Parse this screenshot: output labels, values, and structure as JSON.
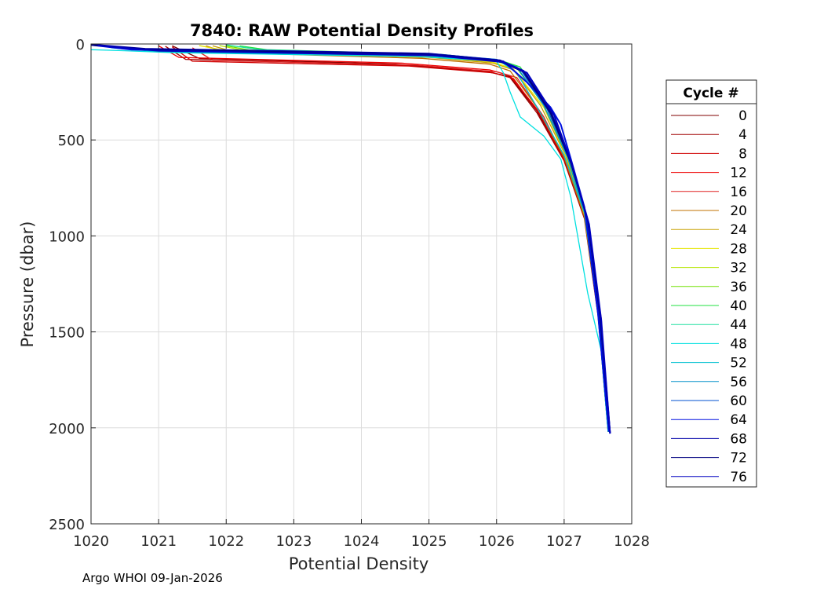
{
  "chart_data": {
    "type": "line",
    "title": "7840: RAW Potential Density Profiles",
    "xlabel": "Potential Density",
    "ylabel": "Pressure (dbar)",
    "xlim": [
      1020,
      1028
    ],
    "ylim": [
      0,
      2500
    ],
    "y_reversed": true,
    "x_ticks": [
      "1020",
      "1021",
      "1022",
      "1023",
      "1024",
      "1025",
      "1026",
      "1027",
      "1028"
    ],
    "y_ticks": [
      "0",
      "500",
      "1000",
      "1500",
      "2000",
      "2500"
    ],
    "grid": true,
    "legend_placement": "right",
    "legend_title": "Cycle #",
    "footer": "Argo WHOI 09-Jan-2026",
    "series": [
      {
        "name": "0",
        "color": "#800000",
        "points": [
          [
            1021.2,
            10
          ],
          [
            1021.6,
            75
          ],
          [
            1024.5,
            105
          ],
          [
            1025.8,
            140
          ],
          [
            1026.2,
            170
          ],
          [
            1026.6,
            350
          ],
          [
            1027.0,
            600
          ],
          [
            1027.3,
            900
          ],
          [
            1027.5,
            1400
          ],
          [
            1027.65,
            2020
          ]
        ]
      },
      {
        "name": "4",
        "color": "#a00000",
        "points": [
          [
            1021.1,
            12
          ],
          [
            1021.4,
            80
          ],
          [
            1024.6,
            110
          ],
          [
            1025.9,
            145
          ],
          [
            1026.2,
            175
          ],
          [
            1026.6,
            360
          ],
          [
            1027.0,
            610
          ],
          [
            1027.3,
            910
          ],
          [
            1027.5,
            1410
          ],
          [
            1027.66,
            2020
          ]
        ]
      },
      {
        "name": "8",
        "color": "#d00000",
        "points": [
          [
            1021.2,
            15
          ],
          [
            1021.5,
            90
          ],
          [
            1024.7,
            115
          ],
          [
            1025.95,
            150
          ],
          [
            1026.25,
            180
          ],
          [
            1026.65,
            370
          ],
          [
            1027.02,
            620
          ],
          [
            1027.32,
            920
          ],
          [
            1027.52,
            1420
          ],
          [
            1027.67,
            2020
          ]
        ]
      },
      {
        "name": "12",
        "color": "#ee0000",
        "points": [
          [
            1021.0,
            10
          ],
          [
            1021.3,
            70
          ],
          [
            1024.6,
            100
          ],
          [
            1025.9,
            135
          ],
          [
            1026.2,
            165
          ],
          [
            1026.6,
            340
          ],
          [
            1027.0,
            590
          ],
          [
            1027.3,
            890
          ],
          [
            1027.55,
            1430
          ],
          [
            1027.65,
            2020
          ]
        ]
      },
      {
        "name": "16",
        "color": "#e02020",
        "points": [
          [
            1021.5,
            20
          ],
          [
            1021.8,
            85
          ],
          [
            1024.8,
            110
          ],
          [
            1026.0,
            145
          ],
          [
            1026.3,
            175
          ],
          [
            1026.7,
            380
          ],
          [
            1027.05,
            630
          ],
          [
            1027.33,
            930
          ],
          [
            1027.5,
            1400
          ],
          [
            1027.68,
            2020
          ]
        ]
      },
      {
        "name": "20",
        "color": "#c07000",
        "points": [
          [
            1021.7,
            10
          ],
          [
            1022.0,
            45
          ],
          [
            1024.9,
            75
          ],
          [
            1025.9,
            105
          ],
          [
            1026.2,
            140
          ],
          [
            1026.6,
            330
          ],
          [
            1027.0,
            590
          ],
          [
            1027.3,
            900
          ],
          [
            1027.5,
            1400
          ],
          [
            1027.66,
            2020
          ]
        ]
      },
      {
        "name": "24",
        "color": "#c8a000",
        "points": [
          [
            1021.8,
            10
          ],
          [
            1022.1,
            40
          ],
          [
            1025.0,
            70
          ],
          [
            1025.95,
            100
          ],
          [
            1026.25,
            135
          ],
          [
            1026.65,
            320
          ],
          [
            1027.02,
            580
          ],
          [
            1027.3,
            890
          ],
          [
            1027.5,
            1390
          ],
          [
            1027.65,
            2020
          ]
        ]
      },
      {
        "name": "28",
        "color": "#e6e600",
        "points": [
          [
            1021.6,
            8
          ],
          [
            1022.0,
            35
          ],
          [
            1025.0,
            65
          ],
          [
            1025.95,
            95
          ],
          [
            1026.25,
            130
          ],
          [
            1026.7,
            330
          ],
          [
            1027.05,
            600
          ],
          [
            1027.33,
            920
          ],
          [
            1027.52,
            1410
          ],
          [
            1027.66,
            2020
          ]
        ]
      },
      {
        "name": "32",
        "color": "#b4e600",
        "points": [
          [
            1021.9,
            8
          ],
          [
            1022.2,
            30
          ],
          [
            1025.1,
            60
          ],
          [
            1026.0,
            90
          ],
          [
            1026.3,
            125
          ],
          [
            1026.75,
            340
          ],
          [
            1027.08,
            610
          ],
          [
            1027.35,
            930
          ],
          [
            1027.53,
            1420
          ],
          [
            1027.67,
            2020
          ]
        ]
      },
      {
        "name": "36",
        "color": "#70e000",
        "points": [
          [
            1022.0,
            10
          ],
          [
            1022.4,
            35
          ],
          [
            1025.1,
            60
          ],
          [
            1026.0,
            90
          ],
          [
            1026.3,
            125
          ],
          [
            1026.7,
            320
          ],
          [
            1027.05,
            590
          ],
          [
            1027.32,
            900
          ],
          [
            1027.5,
            1400
          ],
          [
            1027.65,
            2020
          ]
        ]
      },
      {
        "name": "40",
        "color": "#20e040",
        "points": [
          [
            1022.2,
            10
          ],
          [
            1022.6,
            30
          ],
          [
            1025.2,
            55
          ],
          [
            1026.05,
            85
          ],
          [
            1026.35,
            120
          ],
          [
            1026.75,
            330
          ],
          [
            1027.08,
            600
          ],
          [
            1027.34,
            910
          ],
          [
            1027.52,
            1410
          ],
          [
            1027.66,
            2020
          ]
        ]
      },
      {
        "name": "44",
        "color": "#20e0a0",
        "points": [
          [
            1022.0,
            5
          ],
          [
            1022.5,
            30
          ],
          [
            1025.1,
            55
          ],
          [
            1026.0,
            85
          ],
          [
            1026.3,
            120
          ],
          [
            1026.7,
            320
          ],
          [
            1027.05,
            590
          ],
          [
            1027.33,
            910
          ],
          [
            1027.5,
            1400
          ],
          [
            1027.65,
            2020
          ]
        ]
      },
      {
        "name": "48",
        "color": "#00e0e0",
        "points": [
          [
            1020.0,
            30
          ],
          [
            1020.5,
            35
          ],
          [
            1021.2,
            45
          ],
          [
            1024.8,
            65
          ],
          [
            1026.0,
            90
          ],
          [
            1026.1,
            150
          ],
          [
            1026.2,
            250
          ],
          [
            1026.35,
            380
          ],
          [
            1026.7,
            480
          ],
          [
            1026.95,
            600
          ],
          [
            1027.1,
            800
          ],
          [
            1027.2,
            1000
          ],
          [
            1027.35,
            1300
          ],
          [
            1027.55,
            1600
          ],
          [
            1027.65,
            2020
          ]
        ]
      },
      {
        "name": "52",
        "color": "#00c0d0",
        "points": [
          [
            1020.3,
            20
          ],
          [
            1021.0,
            40
          ],
          [
            1024.9,
            60
          ],
          [
            1026.05,
            90
          ],
          [
            1026.3,
            150
          ],
          [
            1026.6,
            330
          ],
          [
            1027.0,
            580
          ],
          [
            1027.3,
            880
          ],
          [
            1027.5,
            1400
          ],
          [
            1027.66,
            2020
          ]
        ]
      },
      {
        "name": "56",
        "color": "#0090c8",
        "points": [
          [
            1020.2,
            10
          ],
          [
            1020.9,
            30
          ],
          [
            1024.9,
            50
          ],
          [
            1026.0,
            80
          ],
          [
            1026.3,
            120
          ],
          [
            1026.7,
            320
          ],
          [
            1027.05,
            590
          ],
          [
            1027.32,
            900
          ],
          [
            1027.52,
            1410
          ],
          [
            1027.66,
            2020
          ]
        ]
      },
      {
        "name": "60",
        "color": "#0050d0",
        "points": [
          [
            1020.1,
            5
          ],
          [
            1020.7,
            25
          ],
          [
            1025.0,
            50
          ],
          [
            1026.0,
            80
          ],
          [
            1026.35,
            130
          ],
          [
            1026.75,
            340
          ],
          [
            1027.08,
            600
          ],
          [
            1027.34,
            910
          ],
          [
            1027.53,
            1420
          ],
          [
            1027.67,
            2020
          ]
        ]
      },
      {
        "name": "64",
        "color": "#0010e0",
        "points": [
          [
            1020.0,
            5
          ],
          [
            1020.6,
            30
          ],
          [
            1024.9,
            55
          ],
          [
            1026.1,
            90
          ],
          [
            1026.45,
            200
          ],
          [
            1026.8,
            330
          ],
          [
            1026.95,
            420
          ],
          [
            1027.1,
            600
          ],
          [
            1027.3,
            850
          ],
          [
            1027.5,
            1400
          ],
          [
            1027.66,
            2020
          ]
        ]
      },
      {
        "name": "68",
        "color": "#0000a8",
        "points": [
          [
            1020.0,
            3
          ],
          [
            1020.8,
            25
          ],
          [
            1025.0,
            50
          ],
          [
            1026.05,
            85
          ],
          [
            1026.4,
            140
          ],
          [
            1026.8,
            350
          ],
          [
            1027.1,
            610
          ],
          [
            1027.35,
            920
          ],
          [
            1027.53,
            1420
          ],
          [
            1027.68,
            2030
          ]
        ]
      },
      {
        "name": "72",
        "color": "#000080",
        "points": [
          [
            1020.0,
            5
          ],
          [
            1020.9,
            30
          ],
          [
            1025.0,
            55
          ],
          [
            1026.05,
            90
          ],
          [
            1026.4,
            145
          ],
          [
            1026.8,
            360
          ],
          [
            1027.1,
            620
          ],
          [
            1027.36,
            930
          ],
          [
            1027.54,
            1430
          ],
          [
            1027.68,
            2030
          ]
        ]
      },
      {
        "name": "76",
        "color": "#0000c0",
        "points": [
          [
            1020.1,
            8
          ],
          [
            1021.0,
            35
          ],
          [
            1025.1,
            60
          ],
          [
            1026.1,
            95
          ],
          [
            1026.45,
            150
          ],
          [
            1026.85,
            370
          ],
          [
            1027.12,
            630
          ],
          [
            1027.37,
            940
          ],
          [
            1027.55,
            1440
          ],
          [
            1027.68,
            2030
          ]
        ]
      }
    ]
  }
}
